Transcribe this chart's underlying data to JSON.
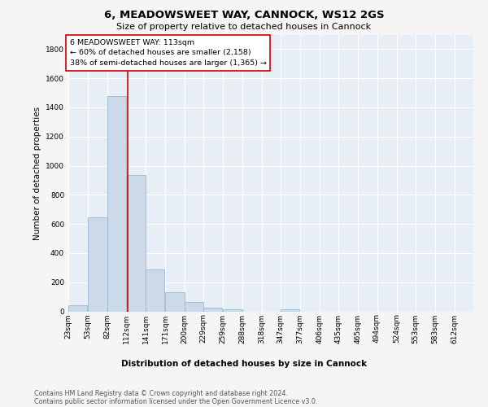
{
  "title": "6, MEADOWSWEET WAY, CANNOCK, WS12 2GS",
  "subtitle": "Size of property relative to detached houses in Cannock",
  "xlabel": "Distribution of detached houses by size in Cannock",
  "ylabel": "Number of detached properties",
  "bar_color": "#ccd9e8",
  "bar_edge_color": "#8ab0cc",
  "categories": [
    "23sqm",
    "53sqm",
    "82sqm",
    "112sqm",
    "141sqm",
    "171sqm",
    "200sqm",
    "229sqm",
    "259sqm",
    "288sqm",
    "318sqm",
    "347sqm",
    "377sqm",
    "406sqm",
    "435sqm",
    "465sqm",
    "494sqm",
    "524sqm",
    "553sqm",
    "583sqm",
    "612sqm"
  ],
  "values": [
    40,
    648,
    1478,
    935,
    290,
    130,
    65,
    25,
    12,
    0,
    0,
    12,
    0,
    0,
    0,
    0,
    0,
    0,
    0,
    0,
    0
  ],
  "bin_starts": [
    23,
    53,
    82,
    112,
    141,
    171,
    200,
    229,
    259,
    288,
    318,
    347,
    377,
    406,
    435,
    465,
    494,
    524,
    553,
    583,
    612
  ],
  "bin_width": 29,
  "ylim": [
    0,
    1900
  ],
  "yticks": [
    0,
    200,
    400,
    600,
    800,
    1000,
    1200,
    1400,
    1600,
    1800
  ],
  "xlim_min": 23,
  "xlim_max": 641,
  "vline_x": 113,
  "vline_color": "#cc0000",
  "annotation_line1": "6 MEADOWSWEET WAY: 113sqm",
  "annotation_line2": "← 60% of detached houses are smaller (2,158)",
  "annotation_line3": "38% of semi-detached houses are larger (1,365) →",
  "annotation_box_color": "#cc0000",
  "footer_line1": "Contains HM Land Registry data © Crown copyright and database right 2024.",
  "footer_line2": "Contains public sector information licensed under the Open Government Licence v3.0.",
  "background_color": "#e8eef5",
  "grid_color": "#ffffff",
  "fig_bg_color": "#f5f5f5",
  "title_fontsize": 9.5,
  "subtitle_fontsize": 8,
  "ylabel_fontsize": 7.5,
  "xlabel_fontsize": 7.5,
  "tick_fontsize": 6.5,
  "annotation_fontsize": 6.8,
  "footer_fontsize": 5.8
}
